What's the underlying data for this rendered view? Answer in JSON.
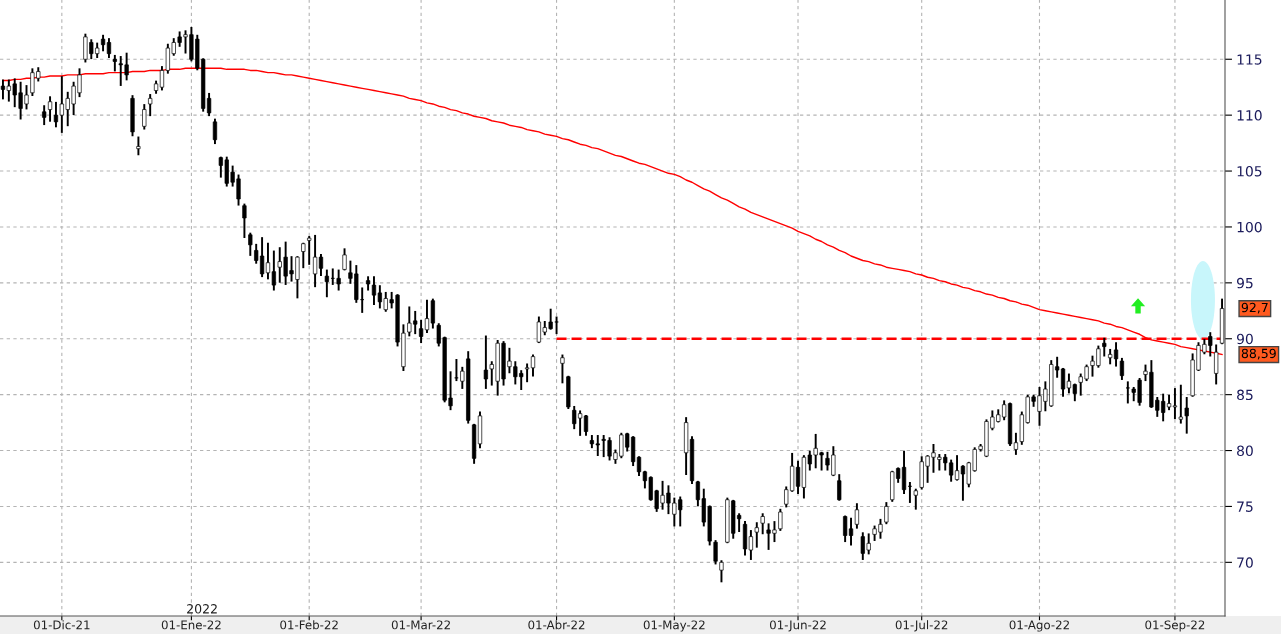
{
  "chart_data": {
    "type": "candlestick",
    "color": "#000000",
    "categories": [
      null,
      null,
      null,
      null,
      null,
      null,
      null,
      null,
      null,
      null,
      "01-Dic-21",
      null,
      null,
      null,
      null,
      null,
      null,
      null,
      null,
      null,
      null,
      null,
      null,
      null,
      null,
      null,
      null,
      null,
      null,
      null,
      null,
      null,
      "01-Ene-22",
      null,
      null,
      null,
      null,
      null,
      null,
      null,
      null,
      null,
      null,
      null,
      null,
      null,
      null,
      null,
      null,
      null,
      null,
      null,
      "01-Feb-22",
      null,
      null,
      null,
      null,
      null,
      null,
      null,
      null,
      null,
      null,
      null,
      null,
      null,
      null,
      null,
      null,
      null,
      null,
      "01-Mar-22",
      null,
      null,
      null,
      null,
      null,
      null,
      null,
      null,
      null,
      null,
      null,
      null,
      null,
      null,
      null,
      null,
      null,
      null,
      null,
      null,
      null,
      null,
      "01-Abr-22",
      null,
      null,
      null,
      null,
      null,
      null,
      null,
      null,
      null,
      null,
      null,
      null,
      null,
      null,
      null,
      null,
      null,
      null,
      null,
      "01-May-22",
      null,
      null,
      null,
      null,
      null,
      null,
      null,
      null,
      null,
      null,
      null,
      null,
      null,
      null,
      null,
      null,
      null,
      null,
      null,
      null,
      "01-Jun-22",
      null,
      null,
      null,
      null,
      null,
      null,
      null,
      null,
      null,
      null,
      null,
      null,
      null,
      null,
      null,
      null,
      null,
      null,
      null,
      null,
      "01-Jul-22",
      null,
      null,
      null,
      null,
      null,
      null,
      null,
      null,
      null,
      null,
      null,
      null,
      null,
      null,
      null,
      null,
      null,
      null,
      null,
      "01-Ago-22",
      null,
      null,
      null,
      null,
      null,
      null,
      null,
      null,
      null,
      null,
      null,
      null,
      null,
      null,
      null,
      null,
      null,
      null,
      null,
      null,
      null,
      null,
      "01-Sep-22",
      null,
      null,
      null,
      null,
      null,
      null,
      null,
      null
    ],
    "ohlc": [
      [
        112.6,
        113.1,
        111.5,
        112.3
      ],
      [
        112.2,
        113.1,
        111.3,
        112.6
      ],
      [
        112.8,
        113.2,
        110.8,
        111.8
      ],
      [
        112.0,
        112.9,
        109.7,
        110.6
      ],
      [
        111.0,
        112.6,
        110.6,
        111.8
      ],
      [
        112.0,
        114.1,
        111.8,
        113.8
      ],
      [
        113.3,
        114.2,
        113.1,
        113.9
      ],
      [
        110.3,
        110.8,
        109.2,
        109.8
      ],
      [
        110.5,
        111.6,
        109.5,
        111.2
      ],
      [
        110.0,
        111.1,
        109.0,
        109.4
      ],
      [
        110.0,
        113.4,
        108.5,
        111.0
      ],
      [
        110.5,
        112.0,
        109.1,
        111.5
      ],
      [
        111.0,
        112.9,
        110.1,
        112.6
      ],
      [
        112.0,
        114.1,
        111.7,
        113.6
      ],
      [
        115.0,
        117.2,
        114.8,
        117.0
      ],
      [
        116.5,
        116.7,
        115.1,
        115.5
      ],
      [
        115.5,
        116.4,
        115.2,
        116.0
      ],
      [
        116.8,
        117.1,
        115.8,
        116.3
      ],
      [
        116.5,
        116.8,
        115.2,
        115.5
      ],
      [
        115.0,
        115.3,
        114.0,
        114.8
      ],
      [
        114.6,
        115.2,
        112.7,
        114.5
      ],
      [
        114.5,
        115.5,
        113.2,
        113.6
      ],
      [
        111.5,
        111.7,
        108.2,
        108.5
      ],
      [
        107.0,
        108.0,
        106.5,
        107.2
      ],
      [
        109.0,
        110.9,
        108.8,
        110.5
      ],
      [
        111.0,
        111.8,
        110.0,
        111.5
      ],
      [
        112.2,
        113.0,
        112.0,
        112.8
      ],
      [
        112.5,
        114.3,
        112.3,
        114.0
      ],
      [
        114.0,
        116.3,
        113.8,
        116.0
      ],
      [
        115.5,
        116.8,
        115.4,
        116.5
      ],
      [
        117.0,
        117.4,
        116.2,
        116.5
      ],
      [
        117.0,
        117.5,
        115.6,
        117.2
      ],
      [
        117.2,
        117.8,
        114.9,
        115.0
      ],
      [
        116.8,
        117.1,
        114.1,
        114.2
      ],
      [
        115.0,
        115.0,
        110.4,
        110.6
      ],
      [
        111.5,
        111.9,
        110.0,
        110.2
      ],
      [
        109.4,
        109.6,
        107.5,
        107.8
      ],
      [
        106.2,
        106.2,
        104.5,
        105.5
      ],
      [
        106.0,
        106.2,
        103.7,
        103.9
      ],
      [
        104.9,
        105.4,
        103.7,
        104.0
      ],
      [
        104.3,
        104.6,
        102.0,
        102.5
      ],
      [
        101.9,
        102.0,
        99.1,
        100.8
      ],
      [
        99.3,
        99.4,
        97.5,
        98.4
      ],
      [
        97.9,
        98.4,
        96.8,
        97.0
      ],
      [
        97.4,
        99.0,
        95.6,
        95.8
      ],
      [
        95.9,
        98.5,
        95.4,
        96.8
      ],
      [
        96.0,
        97.8,
        94.4,
        94.8
      ],
      [
        96.4,
        98.1,
        95.1,
        96.9
      ],
      [
        97.3,
        98.6,
        94.9,
        95.6
      ],
      [
        96.1,
        97.3,
        95.2,
        95.8
      ],
      [
        95.3,
        97.3,
        93.7,
        97.3
      ],
      [
        97.8,
        98.5,
        96.4,
        98.5
      ],
      [
        98.8,
        99.1,
        96.7,
        99.0
      ],
      [
        95.8,
        99.2,
        94.7,
        97.3
      ],
      [
        97.3,
        97.5,
        95.7,
        96.3
      ],
      [
        95.6,
        96.1,
        93.8,
        95.1
      ],
      [
        95.4,
        96.2,
        94.9,
        95.4
      ],
      [
        95.4,
        96.1,
        94.4,
        94.9
      ],
      [
        96.2,
        98.0,
        96.2,
        97.5
      ],
      [
        95.9,
        96.9,
        95.0,
        95.4
      ],
      [
        95.8,
        96.5,
        93.3,
        93.5
      ],
      [
        93.5,
        94.5,
        92.4,
        93.5
      ],
      [
        95.2,
        95.5,
        94.4,
        94.9
      ],
      [
        94.8,
        95.5,
        93.1,
        93.9
      ],
      [
        94.1,
        94.7,
        92.8,
        93.3
      ],
      [
        92.6,
        94.1,
        92.5,
        93.6
      ],
      [
        93.5,
        94.1,
        92.8,
        93.2
      ],
      [
        93.9,
        93.9,
        89.4,
        89.7
      ],
      [
        87.5,
        91.2,
        87.2,
        90.5
      ],
      [
        90.6,
        92.8,
        90.3,
        91.4
      ],
      [
        91.6,
        92.4,
        90.5,
        91.3
      ],
      [
        90.9,
        91.6,
        89.7,
        90.2
      ],
      [
        90.8,
        93.4,
        90.6,
        91.8
      ],
      [
        93.4,
        93.5,
        91.0,
        91.4
      ],
      [
        91.2,
        91.3,
        89.4,
        89.6
      ],
      [
        90.1,
        90.1,
        84.4,
        84.5
      ],
      [
        84.7,
        87.0,
        83.7,
        84.0
      ],
      [
        86.5,
        88.1,
        86.3,
        86.5
      ],
      [
        86.2,
        87.4,
        85.6,
        87.1
      ],
      [
        88.2,
        88.8,
        82.5,
        82.7
      ],
      [
        82.3,
        82.3,
        78.9,
        79.3
      ],
      [
        80.6,
        83.4,
        80.3,
        83.1
      ],
      [
        87.2,
        90.2,
        85.6,
        86.4
      ],
      [
        87.3,
        87.9,
        85.9,
        87.7
      ],
      [
        86.2,
        89.8,
        85.0,
        89.6
      ],
      [
        89.6,
        89.7,
        85.9,
        86.4
      ],
      [
        87.5,
        89.1,
        87.0,
        88.0
      ],
      [
        87.5,
        87.9,
        86.0,
        86.6
      ],
      [
        86.9,
        87.1,
        85.5,
        86.6
      ],
      [
        87.3,
        87.7,
        86.2,
        87.4
      ],
      [
        87.4,
        88.5,
        86.7,
        88.4
      ],
      [
        89.7,
        91.9,
        89.7,
        91.5
      ],
      [
        90.6,
        91.5,
        90.4,
        91.0
      ],
      [
        91.5,
        92.6,
        90.9,
        90.9
      ],
      [
        91.5,
        91.9,
        90.5,
        91.5
      ],
      [
        87.8,
        88.5,
        86.1,
        88.3
      ],
      [
        86.6,
        86.6,
        83.8,
        83.9
      ],
      [
        83.6,
        83.9,
        82.0,
        82.4
      ],
      [
        82.9,
        83.5,
        81.4,
        83.3
      ],
      [
        83.1,
        83.1,
        81.4,
        81.7
      ],
      [
        80.9,
        81.3,
        80.3,
        80.6
      ],
      [
        80.6,
        81.3,
        79.6,
        80.5
      ],
      [
        81.0,
        81.3,
        79.5,
        80.9
      ],
      [
        80.9,
        81.1,
        79.2,
        79.5
      ],
      [
        79.2,
        80.0,
        78.9,
        79.8
      ],
      [
        79.5,
        81.5,
        79.4,
        81.4
      ],
      [
        81.5,
        81.5,
        80.0,
        80.3
      ],
      [
        81.2,
        81.2,
        78.7,
        79.0
      ],
      [
        79.4,
        79.4,
        77.8,
        78.1
      ],
      [
        78.1,
        78.1,
        76.7,
        77.3
      ],
      [
        77.6,
        77.6,
        75.6,
        75.6
      ],
      [
        76.4,
        76.4,
        74.6,
        74.8
      ],
      [
        75.3,
        77.2,
        74.8,
        76.0
      ],
      [
        76.2,
        76.8,
        74.4,
        75.3
      ],
      [
        74.3,
        75.7,
        73.3,
        75.3
      ],
      [
        75.6,
        75.8,
        73.3,
        74.7
      ],
      [
        79.8,
        82.9,
        77.9,
        82.5
      ],
      [
        81.0,
        81.2,
        77.1,
        77.3
      ],
      [
        77.2,
        77.2,
        75.1,
        75.6
      ],
      [
        75.7,
        76.5,
        73.3,
        73.6
      ],
      [
        75.0,
        75.0,
        71.6,
        71.9
      ],
      [
        71.8,
        71.9,
        69.9,
        70.1
      ],
      [
        69.3,
        70.1,
        68.3,
        70.0
      ],
      [
        71.8,
        75.7,
        71.8,
        75.6
      ],
      [
        75.5,
        75.5,
        72.2,
        72.6
      ],
      [
        74.2,
        74.3,
        72.8,
        73.9
      ],
      [
        73.4,
        73.6,
        70.7,
        71.2
      ],
      [
        71.1,
        72.8,
        70.3,
        72.3
      ],
      [
        72.7,
        73.5,
        71.4,
        73.1
      ],
      [
        73.5,
        74.3,
        72.6,
        74.1
      ],
      [
        72.9,
        73.4,
        71.2,
        72.6
      ],
      [
        72.6,
        73.6,
        71.9,
        72.9
      ],
      [
        73.0,
        74.7,
        72.9,
        74.5
      ],
      [
        75.2,
        76.7,
        75.0,
        76.5
      ],
      [
        76.4,
        79.7,
        76.4,
        78.6
      ],
      [
        78.5,
        79.0,
        76.2,
        76.8
      ],
      [
        76.7,
        79.5,
        75.8,
        79.4
      ],
      [
        79.6,
        79.9,
        78.3,
        78.8
      ],
      [
        79.6,
        81.4,
        78.5,
        80.2
      ],
      [
        79.8,
        79.8,
        78.3,
        79.6
      ],
      [
        79.3,
        79.8,
        78.3,
        78.7
      ],
      [
        77.8,
        80.3,
        77.8,
        79.6
      ],
      [
        77.3,
        77.8,
        75.6,
        75.6
      ],
      [
        74.1,
        74.1,
        71.9,
        72.4
      ],
      [
        73.0,
        73.9,
        71.6,
        72.4
      ],
      [
        73.4,
        75.2,
        73.1,
        74.7
      ],
      [
        72.3,
        72.6,
        70.3,
        70.8
      ],
      [
        71.1,
        72.5,
        70.8,
        71.7
      ],
      [
        72.5,
        73.2,
        72.0,
        73.0
      ],
      [
        72.7,
        73.8,
        72.2,
        73.4
      ],
      [
        73.6,
        75.3,
        73.5,
        75.0
      ],
      [
        75.6,
        78.1,
        75.5,
        78.1
      ],
      [
        78.4,
        78.4,
        77.2,
        77.5
      ],
      [
        78.5,
        79.9,
        76.2,
        76.5
      ],
      [
        76.8,
        77.1,
        75.4,
        76.8
      ],
      [
        76.0,
        76.5,
        74.8,
        76.4
      ],
      [
        76.7,
        79.4,
        76.6,
        79.0
      ],
      [
        78.6,
        79.5,
        77.2,
        79.5
      ],
      [
        79.4,
        80.5,
        78.1,
        79.8
      ],
      [
        79.2,
        79.6,
        78.3,
        79.4
      ],
      [
        79.4,
        79.6,
        78.3,
        78.9
      ],
      [
        78.9,
        79.1,
        77.3,
        77.8
      ],
      [
        77.4,
        79.5,
        77.4,
        78.2
      ],
      [
        78.6,
        78.6,
        75.6,
        77.9
      ],
      [
        77.0,
        78.9,
        76.8,
        78.9
      ],
      [
        78.2,
        80.2,
        78.2,
        80.1
      ],
      [
        80.1,
        80.5,
        80.0,
        80.4
      ],
      [
        79.5,
        82.7,
        79.5,
        82.6
      ],
      [
        82.0,
        83.5,
        81.9,
        83.0
      ],
      [
        82.6,
        83.6,
        82.6,
        83.2
      ],
      [
        83.0,
        84.4,
        82.8,
        84.1
      ],
      [
        84.2,
        84.2,
        80.5,
        80.6
      ],
      [
        80.1,
        81.5,
        79.7,
        80.7
      ],
      [
        80.8,
        83.4,
        80.6,
        83.2
      ],
      [
        82.5,
        84.9,
        82.5,
        84.8
      ],
      [
        84.8,
        84.9,
        84.0,
        84.4
      ],
      [
        83.5,
        85.6,
        82.3,
        84.9
      ],
      [
        84.4,
        86.1,
        83.6,
        85.5
      ],
      [
        84.0,
        88.0,
        84.0,
        87.7
      ],
      [
        87.5,
        88.3,
        86.6,
        87.2
      ],
      [
        87.3,
        87.3,
        84.9,
        85.5
      ],
      [
        85.6,
        86.8,
        85.2,
        86.2
      ],
      [
        85.9,
        85.9,
        84.5,
        85.1
      ],
      [
        86.1,
        86.8,
        85.0,
        86.6
      ],
      [
        86.4,
        87.6,
        86.3,
        87.5
      ],
      [
        87.6,
        88.4,
        86.7,
        88.0
      ],
      [
        87.6,
        89.3,
        87.5,
        89.1
      ],
      [
        89.6,
        90.0,
        88.5,
        89.3
      ],
      [
        88.3,
        89.0,
        87.8,
        88.6
      ],
      [
        89.0,
        89.6,
        87.6,
        88.2
      ],
      [
        88.0,
        88.2,
        86.4,
        86.7
      ],
      [
        85.6,
        86.1,
        84.3,
        85.6
      ],
      [
        85.5,
        85.6,
        84.5,
        85.2
      ],
      [
        86.3,
        86.4,
        84.1,
        84.3
      ],
      [
        86.8,
        87.6,
        86.3,
        87.1
      ],
      [
        87.0,
        88.0,
        83.9,
        83.9
      ],
      [
        84.5,
        84.7,
        83.1,
        83.6
      ],
      [
        84.4,
        85.0,
        82.7,
        83.4
      ],
      [
        83.9,
        84.9,
        83.7,
        84.2
      ],
      [
        83.9,
        85.5,
        82.9,
        84.0
      ],
      [
        82.8,
        85.8,
        82.5,
        83.0
      ],
      [
        83.8,
        84.7,
        81.6,
        83.1
      ],
      [
        84.9,
        88.6,
        84.9,
        88.1
      ],
      [
        87.2,
        89.6,
        87.2,
        89.4
      ],
      [
        88.8,
        89.9,
        88.7,
        89.5
      ],
      [
        90.2,
        90.5,
        88.5,
        89.4
      ],
      [
        86.9,
        89.4,
        86.0,
        88.8
      ],
      [
        89.6,
        93.5,
        89.6,
        92.7
      ]
    ],
    "series": [
      {
        "type": "line",
        "color": "#ff0000",
        "line_style": "solid",
        "values": [
          113.1,
          113.1,
          113.2,
          113.2,
          113.3,
          113.3,
          113.4,
          113.4,
          113.5,
          113.5,
          113.5,
          113.6,
          113.6,
          113.6,
          113.7,
          113.7,
          113.7,
          113.7,
          113.8,
          113.8,
          113.8,
          113.8,
          113.9,
          113.9,
          113.9,
          114.0,
          114.0,
          114.0,
          114.1,
          114.1,
          114.1,
          114.2,
          114.2,
          114.2,
          114.2,
          114.2,
          114.2,
          114.2,
          114.1,
          114.1,
          114.1,
          114.1,
          114.0,
          114.0,
          113.9,
          113.8,
          113.8,
          113.7,
          113.6,
          113.6,
          113.5,
          113.4,
          113.3,
          113.2,
          113.1,
          113.0,
          112.9,
          112.8,
          112.7,
          112.6,
          112.5,
          112.4,
          112.3,
          112.2,
          112.1,
          112.0,
          111.9,
          111.8,
          111.7,
          111.5,
          111.4,
          111.3,
          111.1,
          111.0,
          110.8,
          110.7,
          110.5,
          110.4,
          110.2,
          110.1,
          109.9,
          109.8,
          109.7,
          109.5,
          109.4,
          109.3,
          109.1,
          109.0,
          108.9,
          108.7,
          108.6,
          108.5,
          108.3,
          108.2,
          108.1,
          107.9,
          107.8,
          107.6,
          107.4,
          107.3,
          107.1,
          107.0,
          106.8,
          106.6,
          106.4,
          106.3,
          106.1,
          105.9,
          105.7,
          105.6,
          105.4,
          105.2,
          105.0,
          104.8,
          104.7,
          104.5,
          104.2,
          104.0,
          103.7,
          103.4,
          103.2,
          102.9,
          102.6,
          102.4,
          102.1,
          101.8,
          101.6,
          101.3,
          101.1,
          100.9,
          100.7,
          100.5,
          100.3,
          100.1,
          99.9,
          99.6,
          99.4,
          99.2,
          98.9,
          98.7,
          98.4,
          98.2,
          97.9,
          97.7,
          97.4,
          97.2,
          97.0,
          96.9,
          96.7,
          96.6,
          96.4,
          96.3,
          96.2,
          96.1,
          96.0,
          95.8,
          95.7,
          95.5,
          95.4,
          95.2,
          95.1,
          94.9,
          94.8,
          94.6,
          94.5,
          94.3,
          94.2,
          94.0,
          93.9,
          93.7,
          93.6,
          93.4,
          93.3,
          93.1,
          93.0,
          92.8,
          92.6,
          92.5,
          92.4,
          92.3,
          92.2,
          92.1,
          92.0,
          91.9,
          91.8,
          91.7,
          91.6,
          91.4,
          91.3,
          91.1,
          91.0,
          90.8,
          90.6,
          90.4,
          90.1,
          89.9,
          89.8,
          89.7,
          89.6,
          89.5,
          89.3,
          89.2,
          89.1,
          89.0,
          88.9,
          88.8,
          88.7,
          88.59
        ]
      },
      {
        "type": "line",
        "color": "#ff0000",
        "line_style": "dashed",
        "values": [
          null,
          null,
          null,
          null,
          null,
          null,
          null,
          null,
          null,
          null,
          null,
          null,
          null,
          null,
          null,
          null,
          null,
          null,
          null,
          null,
          null,
          null,
          null,
          null,
          null,
          null,
          null,
          null,
          null,
          null,
          null,
          null,
          null,
          null,
          null,
          null,
          null,
          null,
          null,
          null,
          null,
          null,
          null,
          null,
          null,
          null,
          null,
          null,
          null,
          null,
          null,
          null,
          null,
          null,
          null,
          null,
          null,
          null,
          null,
          null,
          null,
          null,
          null,
          null,
          null,
          null,
          null,
          null,
          null,
          null,
          null,
          null,
          null,
          null,
          null,
          null,
          null,
          null,
          null,
          null,
          null,
          null,
          null,
          null,
          null,
          null,
          null,
          null,
          null,
          null,
          null,
          null,
          null,
          null,
          90,
          90,
          90,
          90,
          90,
          90,
          90,
          90,
          90,
          90,
          90,
          90,
          90,
          90,
          90,
          90,
          90,
          90,
          90,
          90,
          90,
          90,
          90,
          90,
          90,
          90,
          90,
          90,
          90,
          90,
          90,
          90,
          90,
          90,
          90,
          90,
          90,
          90,
          90,
          90,
          90,
          90,
          90,
          90,
          90,
          90,
          90,
          90,
          90,
          90,
          90,
          90,
          90,
          90,
          90,
          90,
          90,
          90,
          90,
          90,
          90,
          90,
          90,
          90,
          90,
          90,
          90,
          90,
          90,
          90,
          90,
          90,
          90,
          90,
          90,
          90,
          90,
          90,
          90,
          90,
          90,
          90,
          90,
          90,
          90,
          90,
          90,
          90,
          90,
          90,
          90,
          90,
          90,
          90,
          90,
          90,
          90,
          90,
          90,
          90,
          90,
          90,
          90,
          90,
          90,
          90,
          90,
          90,
          90,
          90,
          90,
          90,
          90,
          90
        ]
      }
    ],
    "ylim": [
      65.2,
      120.3
    ],
    "yticks": [
      70,
      75,
      80,
      85,
      90,
      95,
      100,
      105,
      110,
      115
    ],
    "grid": true,
    "legend": false,
    "annotations": [
      "2022",
      "92,7",
      "88,59"
    ]
  }
}
